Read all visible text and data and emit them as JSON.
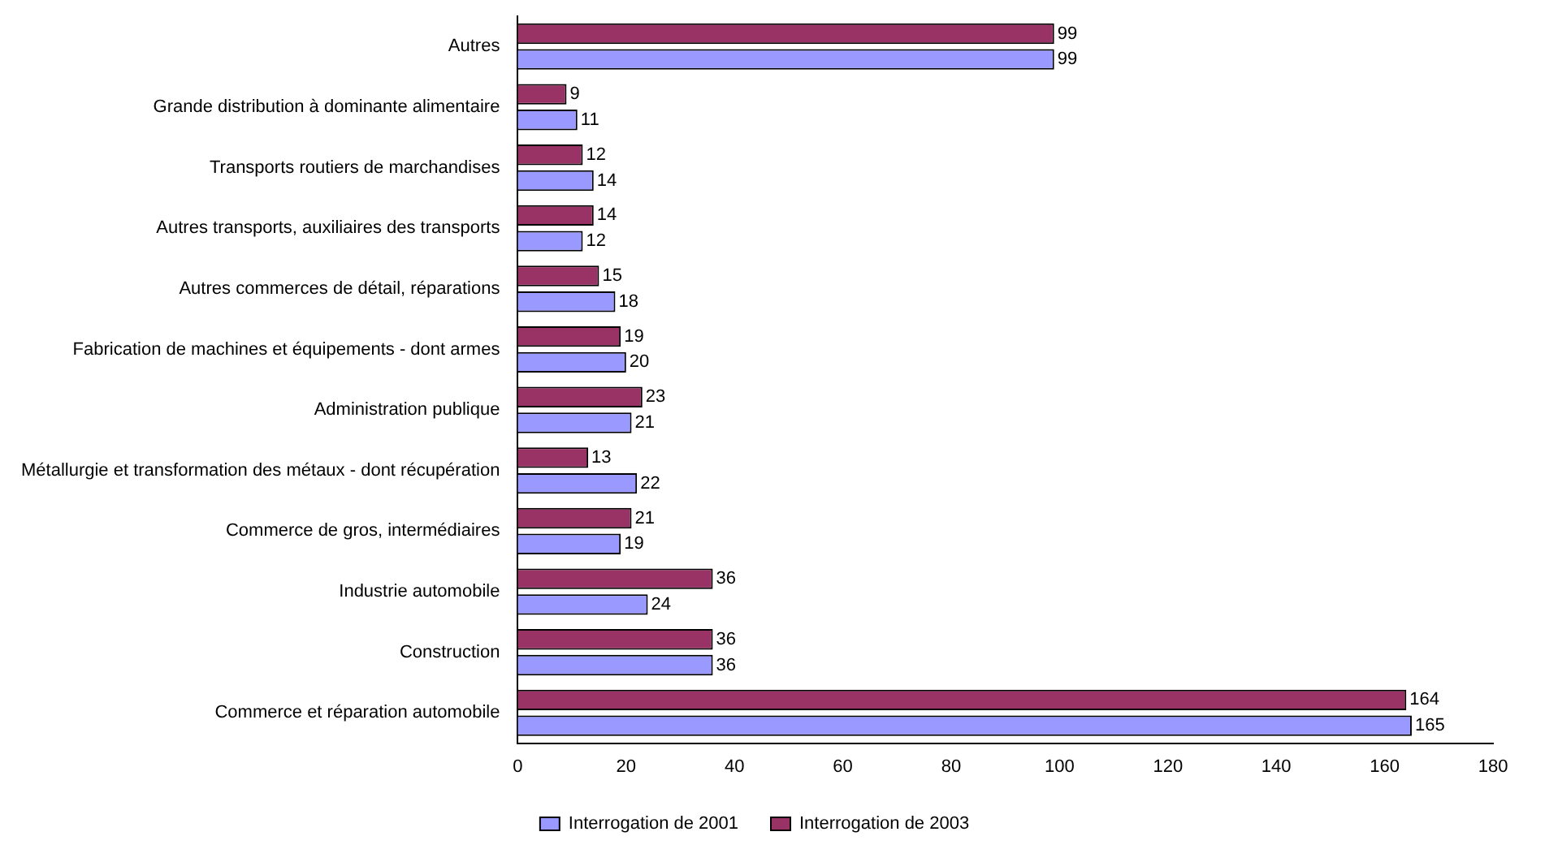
{
  "chart_data": {
    "type": "bar",
    "orientation": "horizontal",
    "categories": [
      "Autres",
      "Grande distribution à dominante alimentaire",
      "Transports routiers de marchandises",
      "Autres transports, auxiliaires des transports",
      "Autres commerces de détail, réparations",
      "Fabrication de machines et équipements - dont armes",
      "Administration publique",
      "Métallurgie et transformation des métaux - dont récupération",
      "Commerce de gros, intermédiaires",
      "Industrie automobile",
      "Construction",
      "Commerce et réparation automobile"
    ],
    "series": [
      {
        "name": "Interrogation de 2001",
        "color": "#9999ff",
        "values": [
          99,
          11,
          14,
          12,
          18,
          20,
          21,
          22,
          19,
          24,
          36,
          165
        ]
      },
      {
        "name": "Interrogation de 2003",
        "color": "#993366",
        "values": [
          99,
          9,
          12,
          14,
          15,
          19,
          23,
          13,
          21,
          36,
          36,
          164
        ]
      }
    ],
    "xlim": [
      0,
      180
    ],
    "xticks": [
      0,
      20,
      40,
      60,
      80,
      100,
      120,
      140,
      160,
      180
    ],
    "grid": false,
    "legend": "bottom",
    "data_labels": true
  }
}
